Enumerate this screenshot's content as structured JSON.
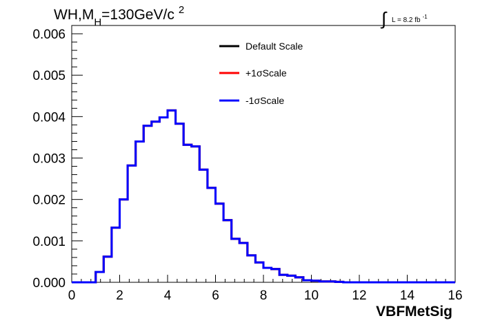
{
  "chart_data": {
    "type": "line",
    "title": {
      "main": "WH,M",
      "subscript": "H",
      "rest": "=130GeV/c",
      "superscript": "2"
    },
    "luminosity": {
      "symbol": "∫",
      "text": "L = 8.2 fb",
      "superscript": "-1"
    },
    "xlabel": "VBFMetSig",
    "ylabel": "",
    "xlim": [
      0,
      16
    ],
    "ylim": [
      0,
      0.0062
    ],
    "x_ticks": [
      "0",
      "2",
      "4",
      "6",
      "8",
      "10",
      "12",
      "14",
      "16"
    ],
    "y_ticks": [
      "0.000",
      "0.001",
      "0.002",
      "0.003",
      "0.004",
      "0.005",
      "0.006"
    ],
    "grid": false,
    "legend_position": "top-center",
    "histogram_bins": {
      "bin_width": 0.3333,
      "start": 0
    },
    "series": [
      {
        "name": "Default Scale",
        "color": "#000000",
        "values": [
          0.0,
          0.0,
          0.0,
          0.00025,
          0.00062,
          0.00132,
          0.002,
          0.00282,
          0.0034,
          0.00378,
          0.00388,
          0.00398,
          0.00415,
          0.00383,
          0.00332,
          0.00328,
          0.00272,
          0.00228,
          0.0019,
          0.0015,
          0.00105,
          0.00095,
          0.00065,
          0.00048,
          0.00035,
          0.00032,
          0.00018,
          0.00016,
          0.00012,
          5e-05,
          4e-05,
          2e-05,
          2e-05,
          1e-05,
          0.0,
          0.0,
          0.0,
          0.0,
          0.0,
          0.0,
          0.0,
          0.0,
          0.0,
          0.0,
          0.0,
          0.0,
          0.0,
          0.0
        ]
      },
      {
        "name": "+1σScale",
        "color": "#ff0000",
        "values": [
          0.0,
          0.0,
          0.0,
          0.00025,
          0.00062,
          0.00132,
          0.002,
          0.00282,
          0.0034,
          0.00378,
          0.00388,
          0.00398,
          0.00415,
          0.00383,
          0.00332,
          0.00328,
          0.00272,
          0.00228,
          0.0019,
          0.0015,
          0.00105,
          0.00095,
          0.00065,
          0.00048,
          0.00035,
          0.00032,
          0.00018,
          0.00016,
          0.00012,
          5e-05,
          4e-05,
          2e-05,
          2e-05,
          1e-05,
          0.0,
          0.0,
          0.0,
          0.0,
          0.0,
          0.0,
          0.0,
          0.0,
          0.0,
          0.0,
          0.0,
          0.0,
          0.0,
          0.0
        ]
      },
      {
        "name": "-1σScale",
        "color": "#0000ff",
        "values": [
          0.0,
          0.0,
          0.0,
          0.00025,
          0.00062,
          0.00132,
          0.002,
          0.00282,
          0.0034,
          0.00378,
          0.00388,
          0.00398,
          0.00415,
          0.00383,
          0.00332,
          0.00328,
          0.00272,
          0.00228,
          0.0019,
          0.0015,
          0.00105,
          0.00095,
          0.00065,
          0.00048,
          0.00035,
          0.00032,
          0.00018,
          0.00016,
          0.00012,
          5e-05,
          4e-05,
          2e-05,
          2e-05,
          1e-05,
          0.0,
          0.0,
          0.0,
          0.0,
          0.0,
          0.0,
          0.0,
          0.0,
          0.0,
          0.0,
          0.0,
          0.0,
          0.0,
          0.0
        ]
      }
    ]
  }
}
